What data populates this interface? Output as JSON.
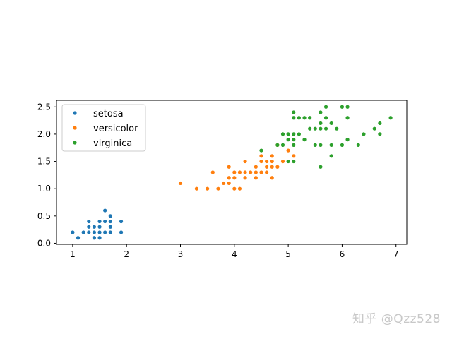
{
  "chart_data": {
    "type": "scatter",
    "title": "",
    "xlabel": "",
    "ylabel": "",
    "xlim": [
      0.7,
      7.2
    ],
    "ylim": [
      -0.02,
      2.62
    ],
    "xticks": [
      1,
      2,
      3,
      4,
      5,
      6,
      7
    ],
    "yticks": [
      0.0,
      0.5,
      1.0,
      1.5,
      2.0,
      2.5
    ],
    "grid": false,
    "legend_position": "upper-left",
    "series": [
      {
        "name": "setosa",
        "color": "#1f77b4",
        "points": [
          [
            1.0,
            0.2
          ],
          [
            1.1,
            0.1
          ],
          [
            1.2,
            0.2
          ],
          [
            1.3,
            0.2
          ],
          [
            1.3,
            0.3
          ],
          [
            1.3,
            0.4
          ],
          [
            1.4,
            0.1
          ],
          [
            1.4,
            0.2
          ],
          [
            1.4,
            0.3
          ],
          [
            1.5,
            0.1
          ],
          [
            1.5,
            0.2
          ],
          [
            1.5,
            0.3
          ],
          [
            1.5,
            0.4
          ],
          [
            1.6,
            0.2
          ],
          [
            1.6,
            0.4
          ],
          [
            1.6,
            0.6
          ],
          [
            1.7,
            0.2
          ],
          [
            1.7,
            0.3
          ],
          [
            1.7,
            0.4
          ],
          [
            1.7,
            0.5
          ],
          [
            1.9,
            0.2
          ],
          [
            1.9,
            0.4
          ]
        ]
      },
      {
        "name": "versicolor",
        "color": "#ff7f0e",
        "points": [
          [
            3.0,
            1.1
          ],
          [
            3.3,
            1.0
          ],
          [
            3.5,
            1.0
          ],
          [
            3.6,
            1.3
          ],
          [
            3.7,
            1.0
          ],
          [
            3.8,
            1.1
          ],
          [
            3.9,
            1.1
          ],
          [
            3.9,
            1.2
          ],
          [
            3.9,
            1.4
          ],
          [
            4.0,
            1.0
          ],
          [
            4.0,
            1.2
          ],
          [
            4.0,
            1.3
          ],
          [
            4.1,
            1.0
          ],
          [
            4.1,
            1.3
          ],
          [
            4.2,
            1.2
          ],
          [
            4.2,
            1.3
          ],
          [
            4.2,
            1.5
          ],
          [
            4.3,
            1.3
          ],
          [
            4.4,
            1.2
          ],
          [
            4.4,
            1.3
          ],
          [
            4.4,
            1.4
          ],
          [
            4.5,
            1.3
          ],
          [
            4.5,
            1.5
          ],
          [
            4.5,
            1.6
          ],
          [
            4.6,
            1.3
          ],
          [
            4.6,
            1.4
          ],
          [
            4.6,
            1.5
          ],
          [
            4.7,
            1.2
          ],
          [
            4.7,
            1.4
          ],
          [
            4.7,
            1.5
          ],
          [
            4.7,
            1.6
          ],
          [
            4.8,
            1.4
          ],
          [
            4.8,
            1.8
          ],
          [
            4.9,
            1.5
          ],
          [
            5.0,
            1.7
          ],
          [
            5.1,
            1.6
          ]
        ]
      },
      {
        "name": "virginica",
        "color": "#2ca02c",
        "points": [
          [
            4.5,
            1.7
          ],
          [
            4.8,
            1.8
          ],
          [
            4.9,
            1.8
          ],
          [
            4.9,
            2.0
          ],
          [
            5.0,
            1.5
          ],
          [
            5.0,
            1.9
          ],
          [
            5.0,
            2.0
          ],
          [
            5.1,
            1.5
          ],
          [
            5.1,
            1.8
          ],
          [
            5.1,
            1.9
          ],
          [
            5.1,
            2.0
          ],
          [
            5.1,
            2.3
          ],
          [
            5.1,
            2.4
          ],
          [
            5.2,
            2.0
          ],
          [
            5.2,
            2.3
          ],
          [
            5.3,
            2.3
          ],
          [
            5.3,
            1.9
          ],
          [
            5.4,
            2.1
          ],
          [
            5.4,
            2.3
          ],
          [
            5.5,
            1.8
          ],
          [
            5.5,
            2.1
          ],
          [
            5.6,
            1.4
          ],
          [
            5.6,
            1.8
          ],
          [
            5.6,
            2.1
          ],
          [
            5.6,
            2.2
          ],
          [
            5.6,
            2.4
          ],
          [
            5.7,
            2.1
          ],
          [
            5.7,
            2.3
          ],
          [
            5.7,
            2.5
          ],
          [
            5.8,
            1.6
          ],
          [
            5.8,
            1.8
          ],
          [
            5.8,
            2.2
          ],
          [
            5.9,
            2.1
          ],
          [
            6.0,
            1.8
          ],
          [
            6.0,
            2.5
          ],
          [
            6.1,
            1.9
          ],
          [
            6.1,
            2.3
          ],
          [
            6.1,
            2.5
          ],
          [
            6.3,
            1.8
          ],
          [
            6.4,
            2.0
          ],
          [
            6.6,
            2.1
          ],
          [
            6.7,
            2.0
          ],
          [
            6.7,
            2.2
          ],
          [
            6.9,
            2.3
          ]
        ]
      }
    ]
  },
  "watermark": "知乎 @Qzz528"
}
